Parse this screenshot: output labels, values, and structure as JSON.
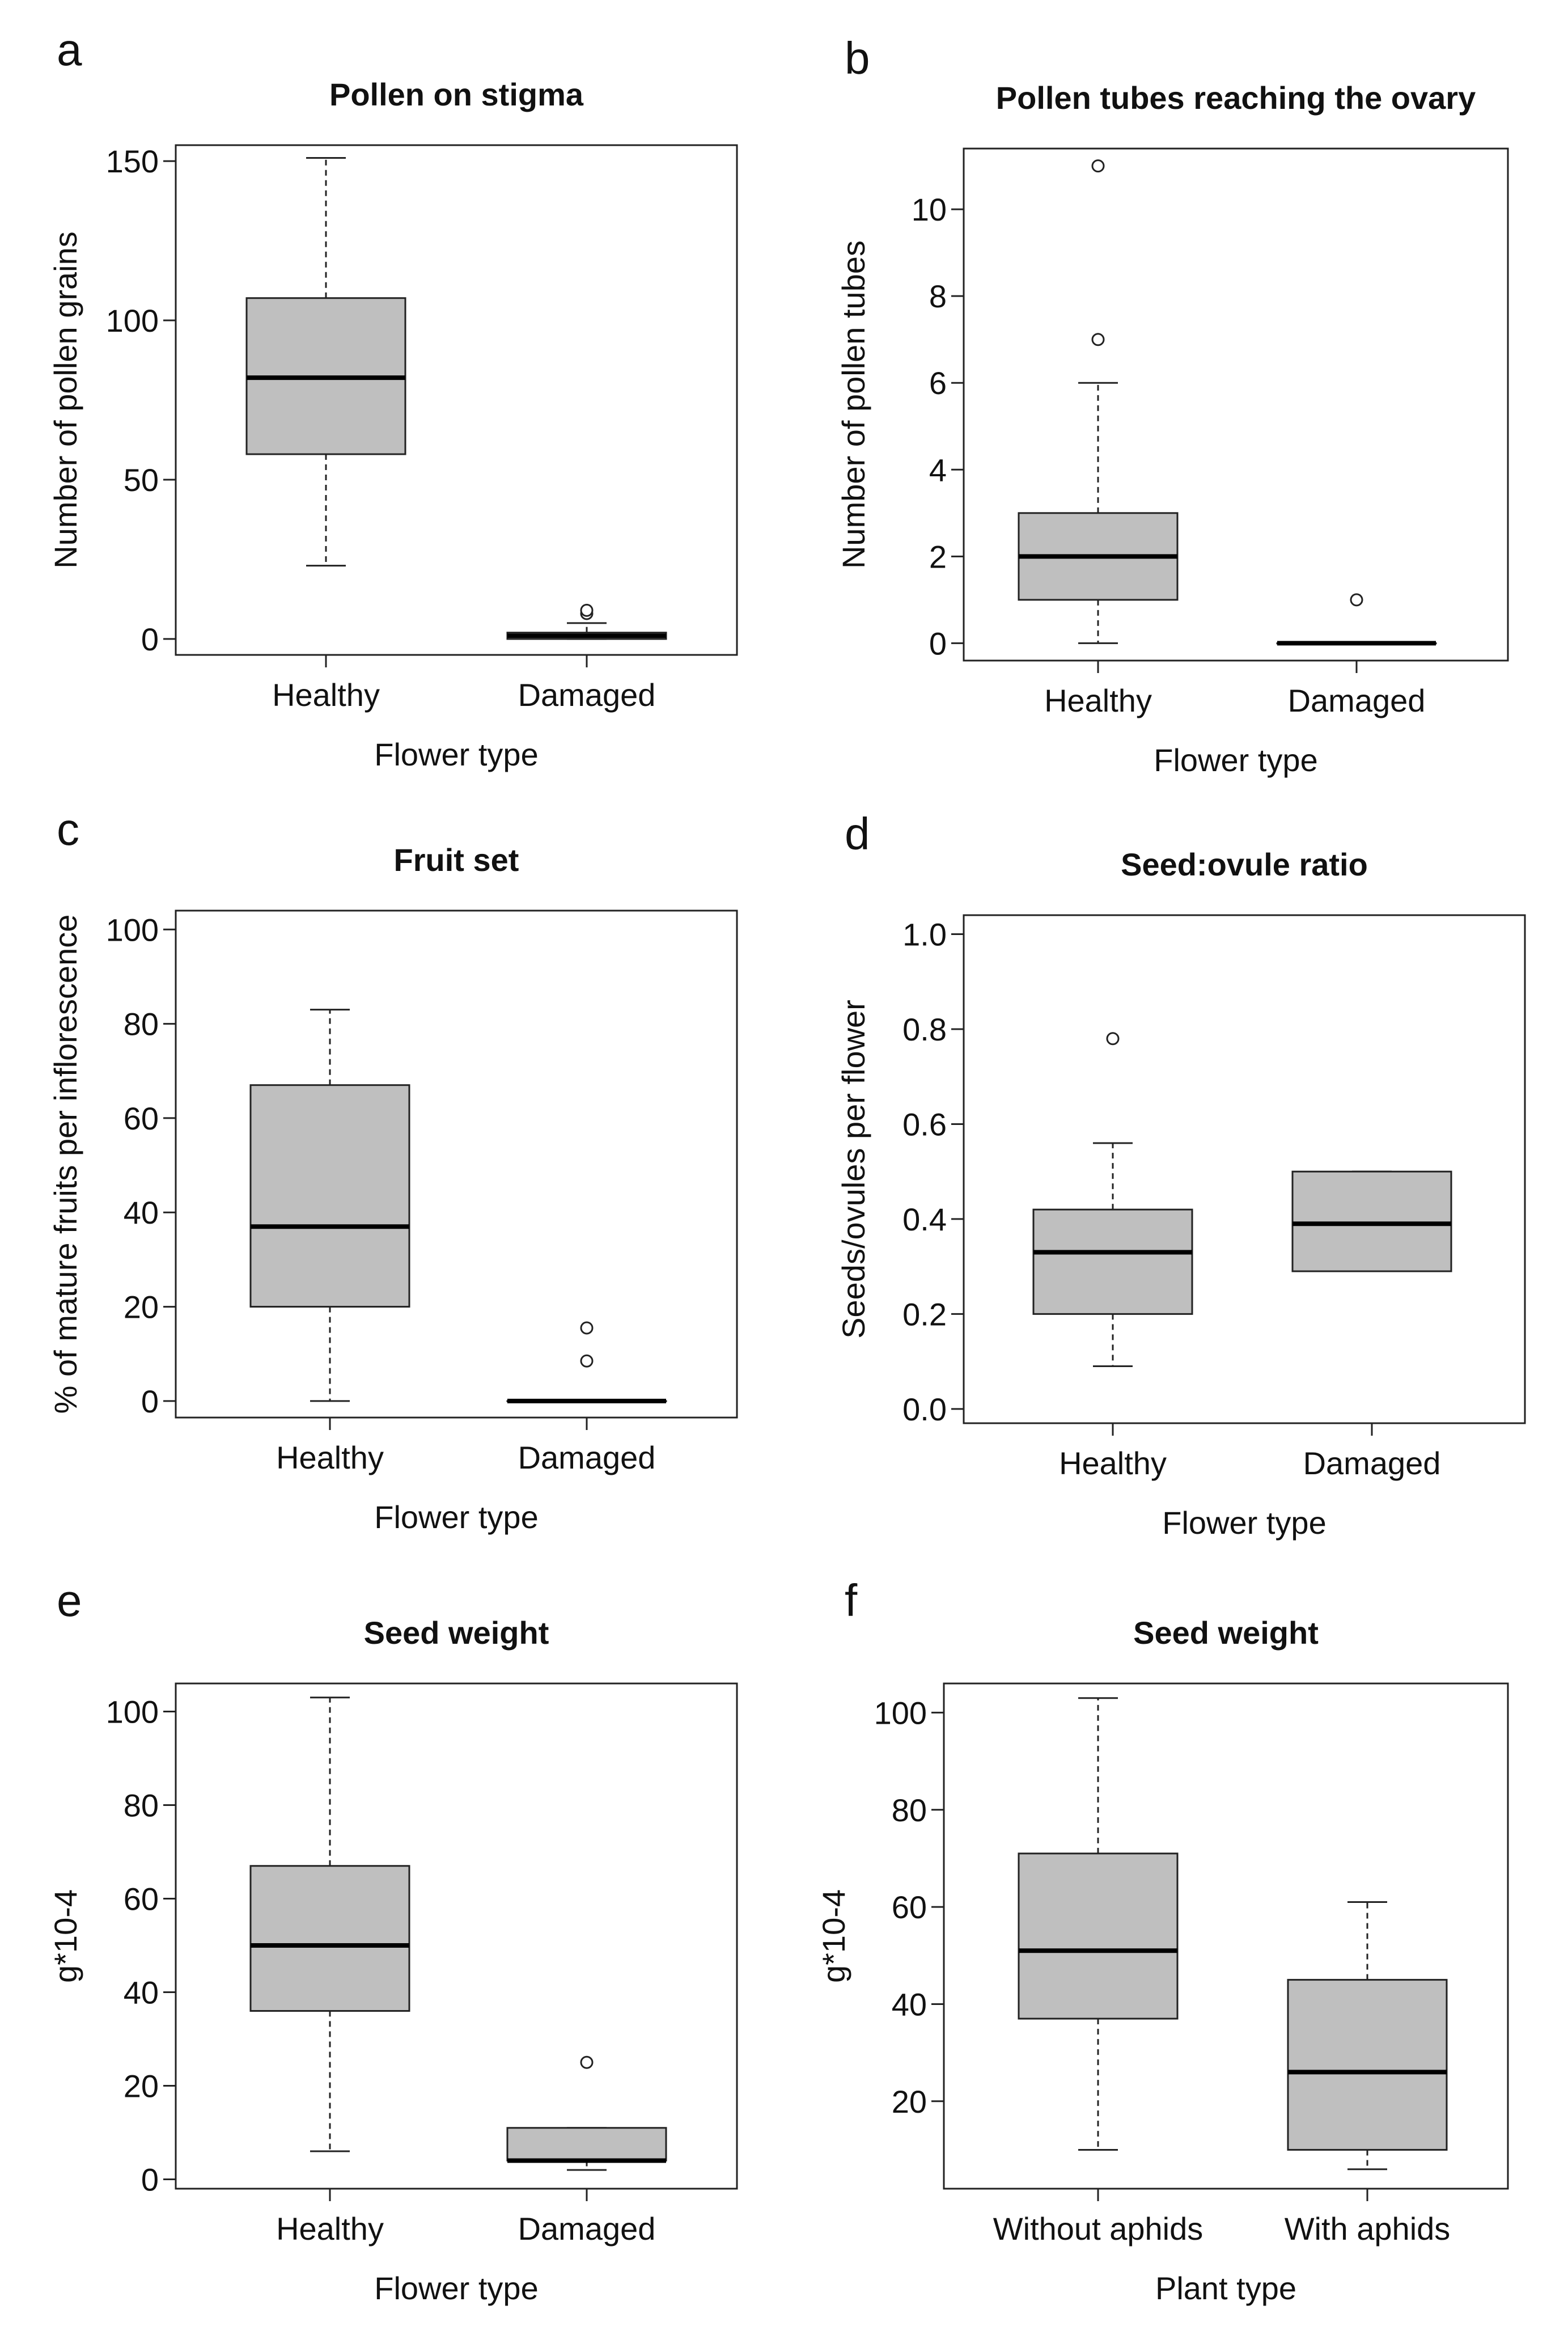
{
  "chart_data": [
    {
      "type": "boxplot",
      "panel": "a",
      "title": "Pollen on stigma",
      "xlabel": "Flower type",
      "ylabel": "Number of pollen grains",
      "ylim": [
        -5,
        155
      ],
      "yticks": [
        0,
        50,
        100,
        150
      ],
      "categories": [
        "Healthy",
        "Damaged"
      ],
      "boxes": [
        {
          "lower_whisker": 23,
          "q1": 58,
          "median": 82,
          "q3": 107,
          "upper_whisker": 151,
          "outliers": []
        },
        {
          "lower_whisker": 0,
          "q1": 0,
          "median": 1,
          "q3": 2,
          "upper_whisker": 5,
          "outliers": [
            8,
            9
          ]
        }
      ]
    },
    {
      "type": "boxplot",
      "panel": "b",
      "title": "Pollen tubes reaching the ovary",
      "xlabel": "Flower type",
      "ylabel": "Number of pollen tubes",
      "ylim": [
        -0.4,
        11.4
      ],
      "yticks": [
        0,
        2,
        4,
        6,
        8,
        10
      ],
      "categories": [
        "Healthy",
        "Damaged"
      ],
      "boxes": [
        {
          "lower_whisker": 0,
          "q1": 1,
          "median": 2,
          "q3": 3,
          "upper_whisker": 6,
          "outliers": [
            7,
            11
          ]
        },
        {
          "lower_whisker": 0,
          "q1": 0,
          "median": 0,
          "q3": 0,
          "upper_whisker": 0,
          "outliers": [
            1
          ]
        }
      ]
    },
    {
      "type": "boxplot",
      "panel": "c",
      "title": "Fruit set",
      "xlabel": "Flower type",
      "ylabel": "% of mature fruits per inflorescence",
      "ylim": [
        -3.5,
        104
      ],
      "yticks": [
        0,
        20,
        40,
        60,
        80,
        100
      ],
      "categories": [
        "Healthy",
        "Damaged"
      ],
      "boxes": [
        {
          "lower_whisker": 0,
          "q1": 20,
          "median": 37,
          "q3": 67,
          "upper_whisker": 83,
          "outliers": []
        },
        {
          "lower_whisker": 0,
          "q1": 0,
          "median": 0,
          "q3": 0,
          "upper_whisker": 0,
          "outliers": [
            8.5,
            15.5
          ]
        }
      ]
    },
    {
      "type": "boxplot",
      "panel": "d",
      "title": "Seed:ovule ratio",
      "xlabel": "Flower type",
      "ylabel": "Seeds/ovules per flower",
      "ylim": [
        -0.03,
        1.04
      ],
      "yticks": [
        "0.0",
        "0.2",
        "0.4",
        "0.6",
        "0.8",
        "1.0"
      ],
      "categories": [
        "Healthy",
        "Damaged"
      ],
      "boxes": [
        {
          "lower_whisker": 0.09,
          "q1": 0.2,
          "median": 0.33,
          "q3": 0.42,
          "upper_whisker": 0.56,
          "outliers": [
            0.78
          ]
        },
        {
          "lower_whisker": 0.29,
          "q1": 0.29,
          "median": 0.39,
          "q3": 0.5,
          "upper_whisker": 0.5,
          "outliers": []
        }
      ]
    },
    {
      "type": "boxplot",
      "panel": "e",
      "title": "Seed weight",
      "xlabel": "Flower type",
      "ylabel": "g*10-4",
      "ylim": [
        -2,
        106
      ],
      "yticks": [
        0,
        20,
        40,
        60,
        80,
        100
      ],
      "categories": [
        "Healthy",
        "Damaged"
      ],
      "boxes": [
        {
          "lower_whisker": 6,
          "q1": 36,
          "median": 50,
          "q3": 67,
          "upper_whisker": 103,
          "outliers": []
        },
        {
          "lower_whisker": 2,
          "q1": 4,
          "median": 4,
          "q3": 11,
          "upper_whisker": 11,
          "outliers": [
            25
          ]
        }
      ]
    },
    {
      "type": "boxplot",
      "panel": "f",
      "title": "Seed weight",
      "xlabel": "Plant type",
      "ylabel": "g*10-4",
      "ylim": [
        2,
        106
      ],
      "yticks": [
        20,
        40,
        60,
        80,
        100
      ],
      "categories": [
        "Without aphids",
        "With aphids"
      ],
      "boxes": [
        {
          "lower_whisker": 10,
          "q1": 37,
          "median": 51,
          "q3": 71,
          "upper_whisker": 103,
          "outliers": []
        },
        {
          "lower_whisker": 6,
          "q1": 10,
          "median": 26,
          "q3": 45,
          "upper_whisker": 61,
          "outliers": []
        }
      ]
    }
  ]
}
